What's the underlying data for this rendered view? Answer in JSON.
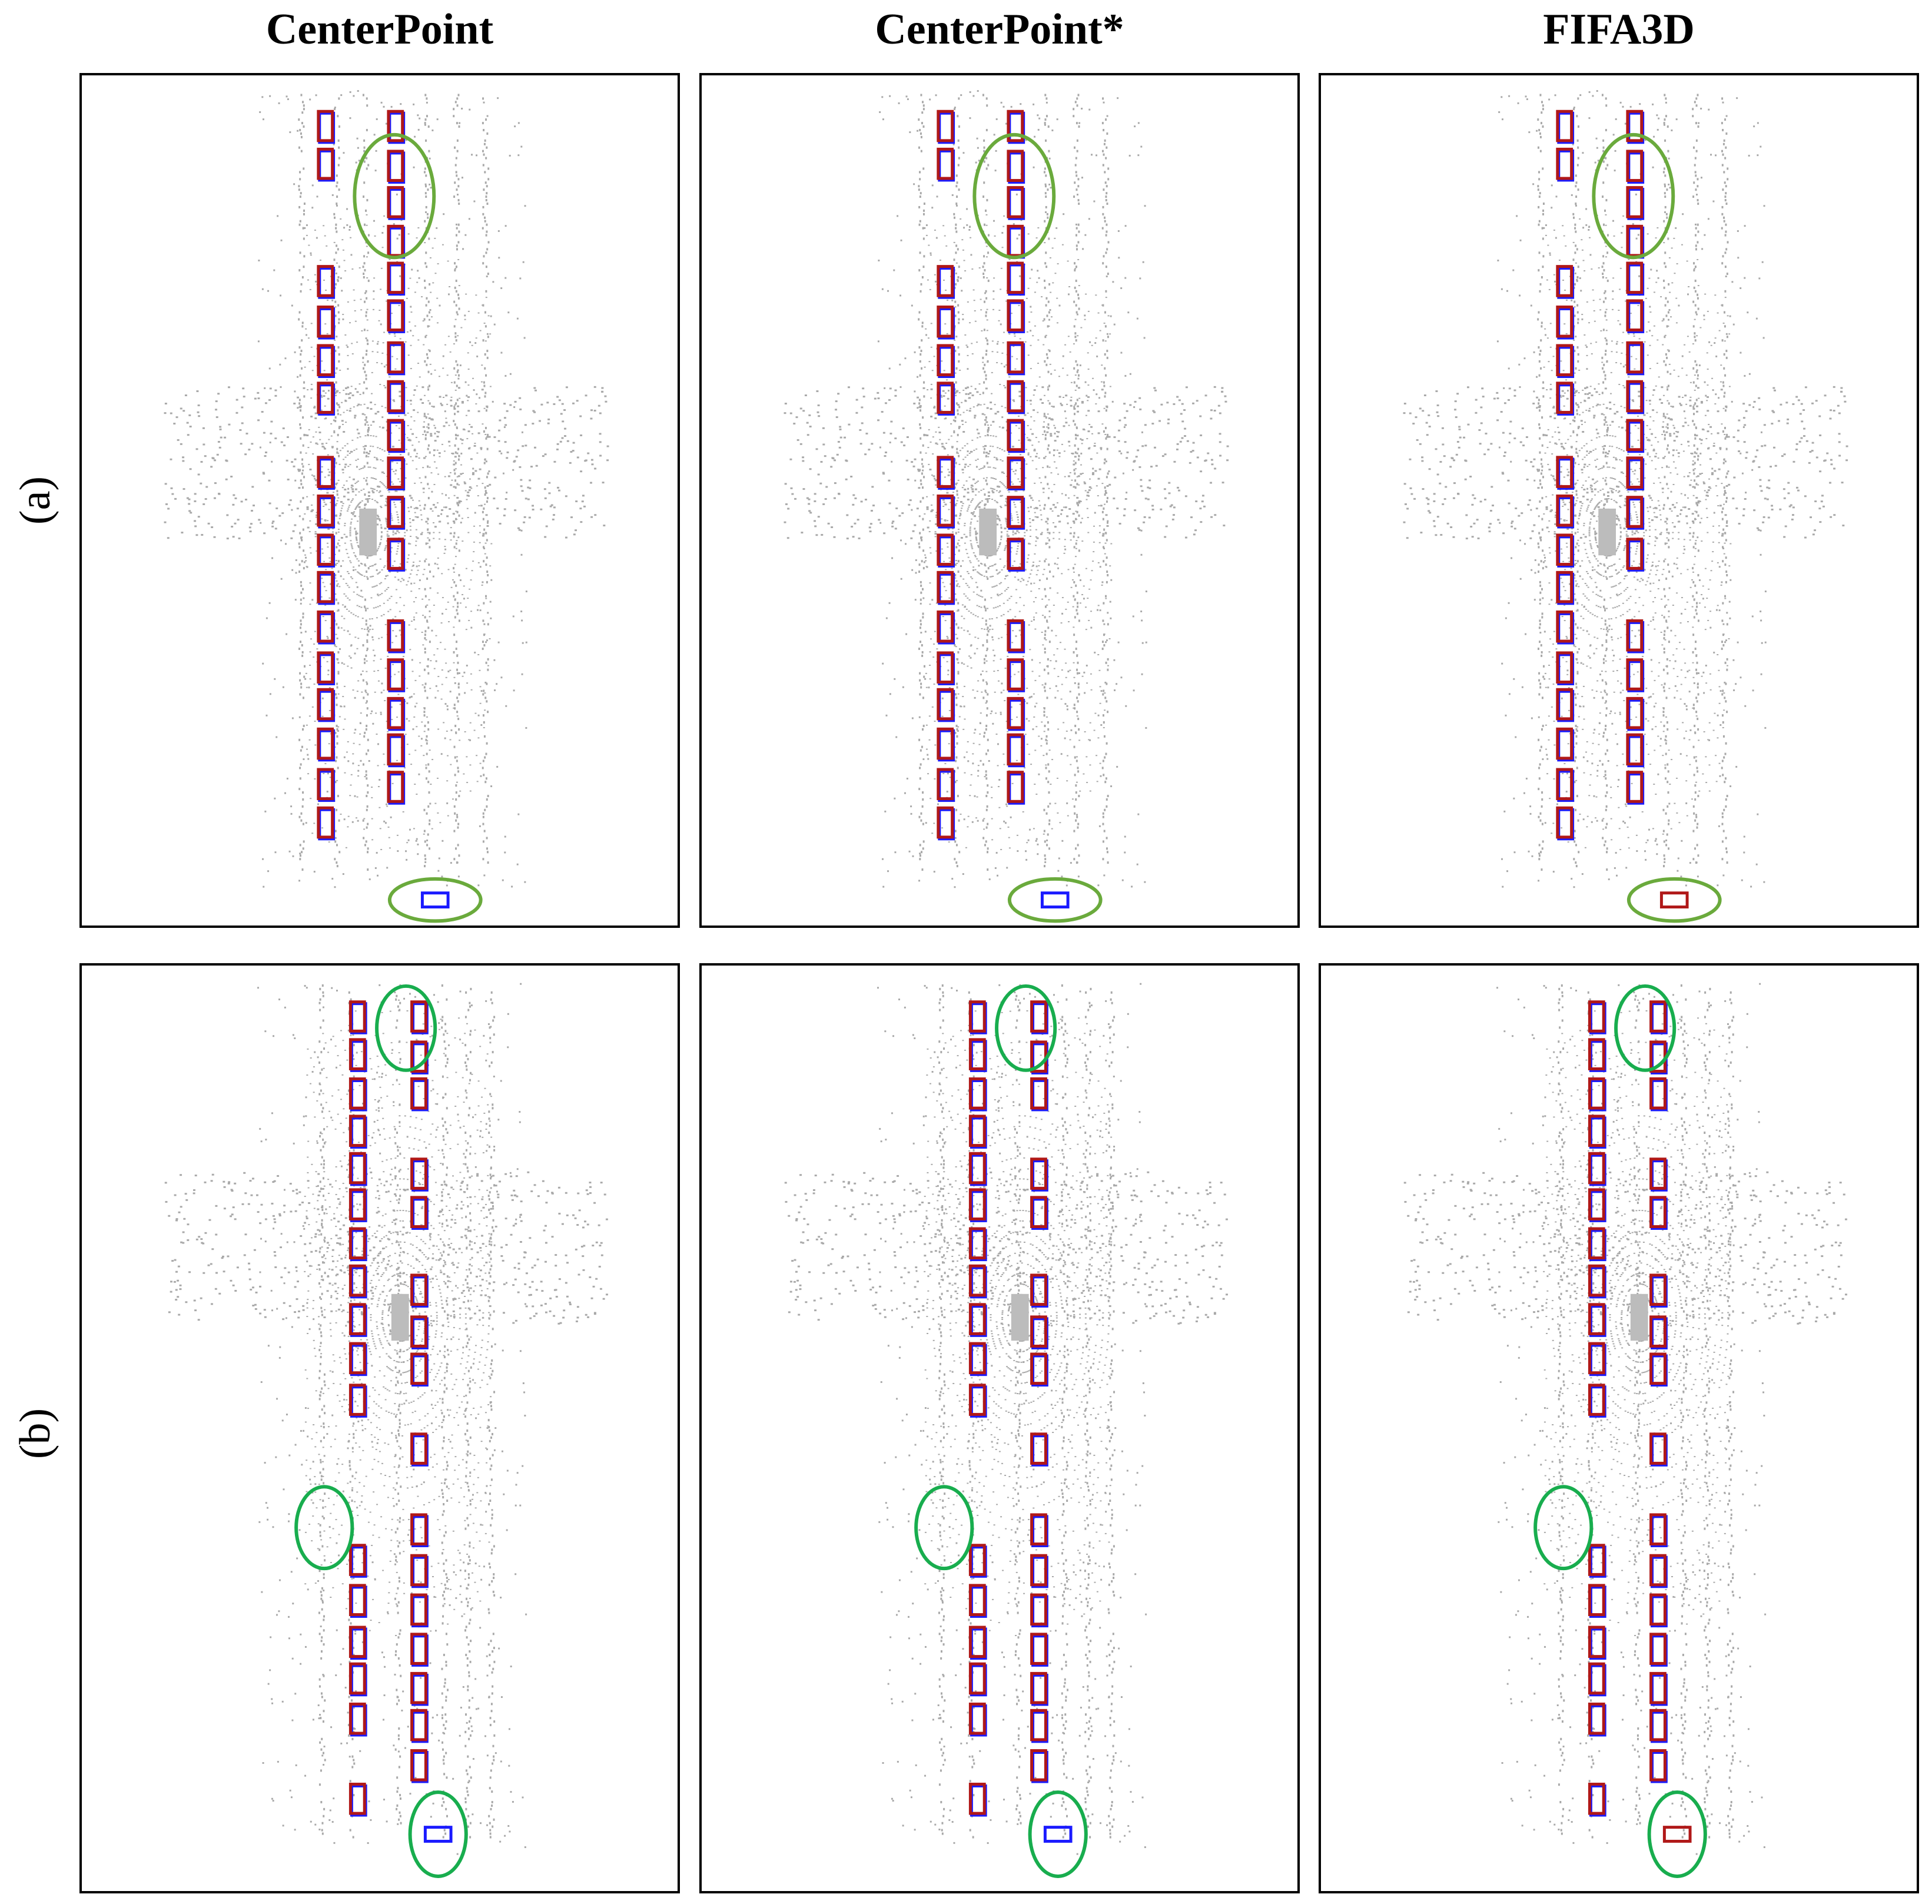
{
  "figure": {
    "columns": [
      {
        "title": "CenterPoint",
        "key": "centerpoint"
      },
      {
        "title": "CenterPoint*",
        "key": "centerpoint_star"
      },
      {
        "title": "FIFA3D",
        "key": "fifa3d"
      }
    ],
    "rows": [
      {
        "label": "(a)",
        "key": "a"
      },
      {
        "label": "(b)",
        "key": "b"
      }
    ]
  },
  "colors": {
    "ground_truth_box": "#1a1aff",
    "prediction_box": "#b01818",
    "highlight_ellipse_a": "#6aaa3c",
    "highlight_ellipse_b": "#18ad4e",
    "point_cloud": "#a9a9a9",
    "border": "#000000"
  }
}
